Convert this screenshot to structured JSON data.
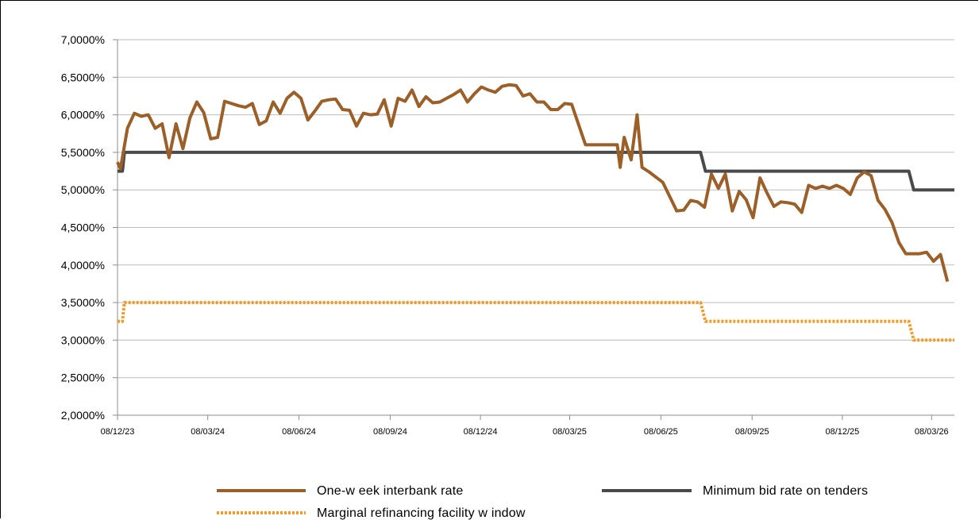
{
  "chart_data": {
    "type": "line",
    "title": "",
    "xlabel": "",
    "ylabel": "",
    "ylim": [
      2.0,
      7.0
    ],
    "y_ticks": [
      "2,0000%",
      "2,5000%",
      "3,0000%",
      "3,5000%",
      "4,0000%",
      "4,5000%",
      "5,0000%",
      "5,5000%",
      "6,0000%",
      "6,5000%",
      "7,0000%"
    ],
    "x_range": [
      "2023-12-08",
      "2026-03-31"
    ],
    "x_ticks": [
      {
        "label": "08/12/23",
        "date": "2023-12-08"
      },
      {
        "label": "08/03/24",
        "date": "2024-03-08"
      },
      {
        "label": "08/06/24",
        "date": "2024-06-08"
      },
      {
        "label": "08/09/24",
        "date": "2024-09-08"
      },
      {
        "label": "08/12/24",
        "date": "2024-12-08"
      },
      {
        "label": "08/03/25",
        "date": "2025-03-08"
      },
      {
        "label": "08/06/25",
        "date": "2025-06-08"
      },
      {
        "label": "08/09/25",
        "date": "2025-09-08"
      },
      {
        "label": "08/12/25",
        "date": "2025-12-08"
      },
      {
        "label": "08/03/26",
        "date": "2026-03-08"
      }
    ],
    "grid": "horizontal",
    "legend_position": "bottom",
    "series": [
      {
        "name": "One-w eek interbank rate",
        "color": "#9b5f27",
        "style": "solid",
        "points": [
          [
            "2023-12-08",
            5.37
          ],
          [
            "2023-12-11",
            5.28
          ],
          [
            "2023-12-18",
            5.82
          ],
          [
            "2023-12-25",
            6.02
          ],
          [
            "2024-01-01",
            5.98
          ],
          [
            "2024-01-08",
            6.0
          ],
          [
            "2024-01-15",
            5.82
          ],
          [
            "2024-01-22",
            5.88
          ],
          [
            "2024-01-29",
            5.43
          ],
          [
            "2024-02-05",
            5.88
          ],
          [
            "2024-02-12",
            5.55
          ],
          [
            "2024-02-19",
            5.96
          ],
          [
            "2024-02-26",
            6.17
          ],
          [
            "2024-03-04",
            6.03
          ],
          [
            "2024-03-11",
            5.68
          ],
          [
            "2024-03-18",
            5.7
          ],
          [
            "2024-03-25",
            6.18
          ],
          [
            "2024-04-01",
            6.15
          ],
          [
            "2024-04-08",
            6.12
          ],
          [
            "2024-04-15",
            6.1
          ],
          [
            "2024-04-22",
            6.15
          ],
          [
            "2024-04-29",
            5.87
          ],
          [
            "2024-05-06",
            5.92
          ],
          [
            "2024-05-13",
            6.17
          ],
          [
            "2024-05-20",
            6.02
          ],
          [
            "2024-05-27",
            6.22
          ],
          [
            "2024-06-03",
            6.3
          ],
          [
            "2024-06-10",
            6.22
          ],
          [
            "2024-06-17",
            5.93
          ],
          [
            "2024-06-24",
            6.05
          ],
          [
            "2024-07-01",
            6.18
          ],
          [
            "2024-07-08",
            6.2
          ],
          [
            "2024-07-15",
            6.21
          ],
          [
            "2024-07-22",
            6.07
          ],
          [
            "2024-07-29",
            6.06
          ],
          [
            "2024-08-05",
            5.85
          ],
          [
            "2024-08-12",
            6.02
          ],
          [
            "2024-08-19",
            6.0
          ],
          [
            "2024-08-26",
            6.01
          ],
          [
            "2024-09-02",
            6.2
          ],
          [
            "2024-09-09",
            5.85
          ],
          [
            "2024-09-16",
            6.22
          ],
          [
            "2024-09-23",
            6.18
          ],
          [
            "2024-09-30",
            6.33
          ],
          [
            "2024-10-07",
            6.11
          ],
          [
            "2024-10-14",
            6.24
          ],
          [
            "2024-10-21",
            6.16
          ],
          [
            "2024-10-28",
            6.17
          ],
          [
            "2024-11-04",
            6.22
          ],
          [
            "2024-11-11",
            6.27
          ],
          [
            "2024-11-18",
            6.33
          ],
          [
            "2024-11-25",
            6.17
          ],
          [
            "2024-12-02",
            6.28
          ],
          [
            "2024-12-09",
            6.37
          ],
          [
            "2024-12-16",
            6.33
          ],
          [
            "2024-12-23",
            6.3
          ],
          [
            "2024-12-30",
            6.38
          ],
          [
            "2025-01-06",
            6.4
          ],
          [
            "2025-01-13",
            6.39
          ],
          [
            "2025-01-20",
            6.25
          ],
          [
            "2025-01-27",
            6.28
          ],
          [
            "2025-02-03",
            6.17
          ],
          [
            "2025-02-10",
            6.17
          ],
          [
            "2025-02-17",
            6.07
          ],
          [
            "2025-02-24",
            6.07
          ],
          [
            "2025-03-03",
            6.15
          ],
          [
            "2025-03-10",
            6.14
          ],
          [
            "2025-03-24",
            5.6
          ],
          [
            "2025-04-07",
            5.6
          ],
          [
            "2025-04-21",
            5.6
          ],
          [
            "2025-04-25",
            5.6
          ],
          [
            "2025-04-28",
            5.3
          ],
          [
            "2025-05-02",
            5.7
          ],
          [
            "2025-05-09",
            5.4
          ],
          [
            "2025-05-15",
            6.0
          ],
          [
            "2025-05-20",
            5.3
          ],
          [
            "2025-05-27",
            5.24
          ],
          [
            "2025-06-10",
            5.1
          ],
          [
            "2025-06-24",
            4.72
          ],
          [
            "2025-07-01",
            4.73
          ],
          [
            "2025-07-08",
            4.86
          ],
          [
            "2025-07-15",
            4.84
          ],
          [
            "2025-07-22",
            4.77
          ],
          [
            "2025-07-29",
            5.21
          ],
          [
            "2025-08-05",
            5.02
          ],
          [
            "2025-08-12",
            5.21
          ],
          [
            "2025-08-19",
            4.72
          ],
          [
            "2025-08-26",
            4.98
          ],
          [
            "2025-09-02",
            4.87
          ],
          [
            "2025-09-09",
            4.63
          ],
          [
            "2025-09-16",
            5.16
          ],
          [
            "2025-09-23",
            4.96
          ],
          [
            "2025-09-30",
            4.78
          ],
          [
            "2025-10-07",
            4.84
          ],
          [
            "2025-10-14",
            4.83
          ],
          [
            "2025-10-21",
            4.81
          ],
          [
            "2025-10-28",
            4.7
          ],
          [
            "2025-11-04",
            5.06
          ],
          [
            "2025-11-11",
            5.02
          ],
          [
            "2025-11-18",
            5.05
          ],
          [
            "2025-11-25",
            5.02
          ],
          [
            "2025-12-02",
            5.06
          ],
          [
            "2025-12-09",
            5.02
          ],
          [
            "2025-12-16",
            4.94
          ],
          [
            "2025-12-23",
            5.16
          ],
          [
            "2025-12-30",
            5.24
          ],
          [
            "2026-01-06",
            5.19
          ],
          [
            "2026-01-13",
            4.86
          ],
          [
            "2026-01-20",
            4.74
          ],
          [
            "2026-01-27",
            4.57
          ],
          [
            "2026-02-03",
            4.3
          ],
          [
            "2026-02-10",
            4.15
          ],
          [
            "2026-02-17",
            4.15
          ],
          [
            "2026-02-24",
            4.15
          ],
          [
            "2026-03-03",
            4.17
          ],
          [
            "2026-03-10",
            4.05
          ],
          [
            "2026-03-17",
            4.14
          ],
          [
            "2026-03-24",
            3.78
          ]
        ]
      },
      {
        "name": "Minimum bid rate on tenders",
        "color": "#4a4a4a",
        "style": "solid",
        "points": [
          [
            "2023-12-08",
            5.25
          ],
          [
            "2023-12-13",
            5.25
          ],
          [
            "2023-12-15",
            5.5
          ],
          [
            "2025-07-18",
            5.5
          ],
          [
            "2025-07-23",
            5.25
          ],
          [
            "2026-02-13",
            5.25
          ],
          [
            "2026-02-18",
            5.0
          ],
          [
            "2026-03-31",
            5.0
          ]
        ]
      },
      {
        "name": "Marginal refinancing facility w indow",
        "color": "#f39a27",
        "style": "dotted",
        "points": [
          [
            "2023-12-08",
            3.25
          ],
          [
            "2023-12-13",
            3.25
          ],
          [
            "2023-12-15",
            3.5
          ],
          [
            "2025-07-18",
            3.5
          ],
          [
            "2025-07-23",
            3.25
          ],
          [
            "2026-02-13",
            3.25
          ],
          [
            "2026-02-18",
            3.0
          ],
          [
            "2026-03-31",
            3.0
          ]
        ]
      }
    ]
  }
}
